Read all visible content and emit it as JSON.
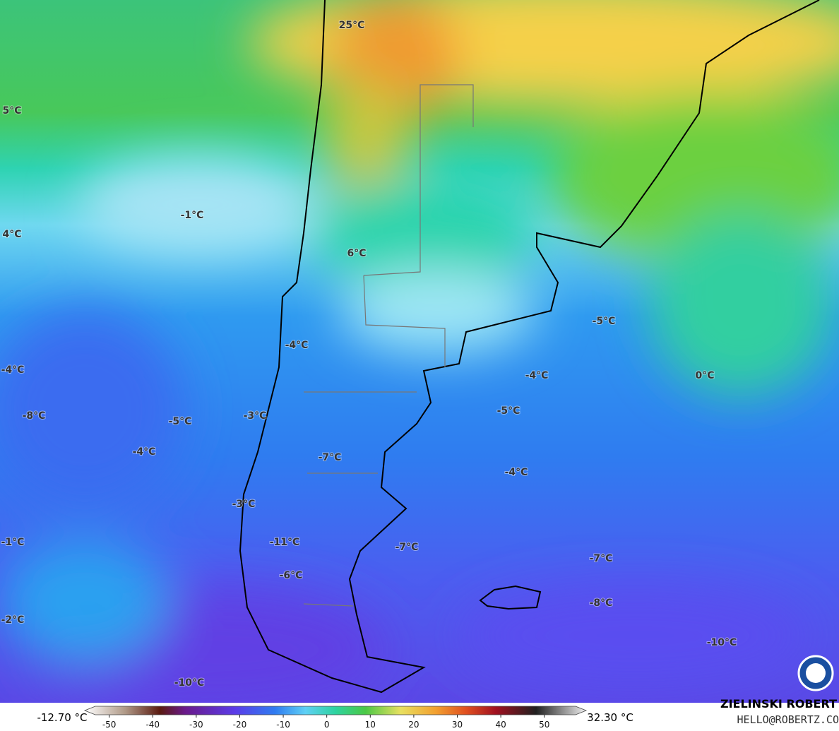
{
  "map": {
    "labels": [
      "25°C",
      "5°C",
      "4°C",
      "-1°C",
      "6°C",
      "-5°C",
      "-4°C",
      "-4°C",
      "-4°C",
      "0°C",
      "-8°C",
      "-3°C",
      "-5°C",
      "-5°C",
      "-4°C",
      "-7°C",
      "-4°C",
      "-3°C",
      "-11°C",
      "-7°C",
      "-1°C",
      "-7°C",
      "-6°C",
      "-8°C",
      "-2°C",
      "-10°C",
      "-10°C"
    ],
    "colorbar": {
      "min_label": "-12.70 °C",
      "max_label": "32.30 °C",
      "lim": [
        -54,
        58
      ],
      "ticks": [
        -50,
        -40,
        -30,
        -20,
        -10,
        0,
        10,
        20,
        30,
        40,
        50
      ]
    },
    "credit": {
      "name": "ZIELINSKI ROBERT",
      "contact": "HELLO@ROBERTZ.CO"
    }
  }
}
